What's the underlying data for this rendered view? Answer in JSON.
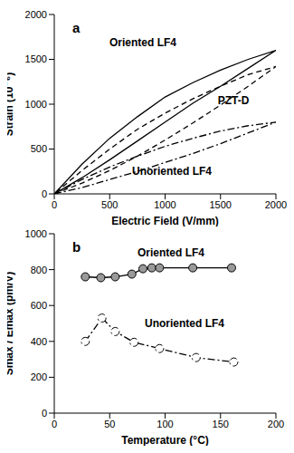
{
  "chart_data": [
    {
      "type": "line",
      "title": "a",
      "x_label": "Electric Field (V/mm)",
      "y_label": "Strain (10⁻⁶)",
      "xlim": [
        0,
        2000
      ],
      "xticks": [
        0,
        500,
        1000,
        1500,
        2000
      ],
      "ylim": [
        0,
        2000
      ],
      "yticks": [
        0,
        500,
        1000,
        1500,
        2000
      ],
      "series": [
        {
          "name": "Oriented LF4",
          "color": "#000000",
          "line_style": "solid",
          "x": [
            0,
            250,
            500,
            750,
            1000,
            1250,
            1500,
            1750,
            2000,
            1750,
            1500,
            1250,
            1000,
            750,
            500,
            250,
            0
          ],
          "values": [
            0,
            180,
            380,
            590,
            800,
            1010,
            1200,
            1400,
            1600,
            1500,
            1380,
            1240,
            1080,
            860,
            620,
            330,
            0
          ]
        },
        {
          "name": "PZT-D",
          "color": "#000000",
          "line_style": "dashed",
          "x": [
            0,
            250,
            500,
            750,
            1000,
            1250,
            1500,
            1750,
            2000,
            1750,
            1500,
            1250,
            1000,
            750,
            500,
            250,
            0
          ],
          "values": [
            0,
            120,
            260,
            420,
            600,
            790,
            990,
            1200,
            1420,
            1330,
            1200,
            1060,
            900,
            720,
            500,
            260,
            0
          ]
        },
        {
          "name": "Unoriented LF4",
          "color": "#000000",
          "line_style": "dashdot",
          "x": [
            0,
            250,
            500,
            750,
            1000,
            1250,
            1500,
            1750,
            2000,
            1750,
            1500,
            1250,
            1000,
            750,
            500,
            250,
            0
          ],
          "values": [
            0,
            70,
            160,
            250,
            350,
            450,
            560,
            680,
            800,
            760,
            700,
            620,
            530,
            420,
            300,
            160,
            0
          ]
        }
      ]
    },
    {
      "type": "line",
      "title": "b",
      "x_label": "Temperature (°C)",
      "y_label": "Smax / Emax (pm/V)",
      "xlim": [
        0,
        200
      ],
      "xticks": [
        0,
        50,
        100,
        150,
        200
      ],
      "ylim": [
        0,
        1000
      ],
      "yticks": [
        0,
        200,
        400,
        600,
        800,
        1000
      ],
      "series": [
        {
          "name": "Oriented LF4",
          "color": "#999999",
          "line_style": "solid",
          "marker": "circle",
          "x": [
            28,
            42,
            55,
            70,
            80,
            88,
            95,
            125,
            160
          ],
          "values": [
            760,
            755,
            760,
            775,
            805,
            810,
            810,
            810,
            810
          ]
        },
        {
          "name": "Unoriented LF4",
          "color": "#ffffff",
          "line_style": "dashdot",
          "marker": "circle",
          "x": [
            28,
            43,
            55,
            72,
            95,
            128,
            162
          ],
          "values": [
            400,
            530,
            455,
            395,
            360,
            310,
            285
          ]
        }
      ]
    }
  ]
}
